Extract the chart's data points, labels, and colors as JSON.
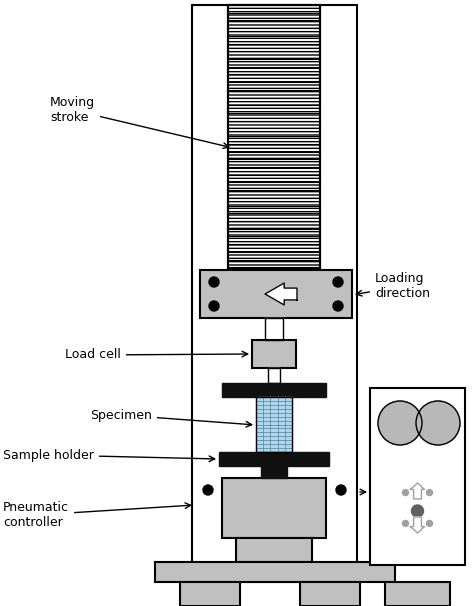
{
  "bg_color": "#ffffff",
  "frame_color": "#000000",
  "gray_light": "#c0c0c0",
  "labels": {
    "moving_stroke": "Moving\nstroke",
    "load_cell": "Load cell",
    "specimen": "Specimen",
    "sample_holder": "Sample holder",
    "pneumatic": "Pneumatic\ncontroller",
    "loading_direction": "Loading\ndirection"
  },
  "figsize": [
    4.74,
    6.06
  ],
  "dpi": 100
}
